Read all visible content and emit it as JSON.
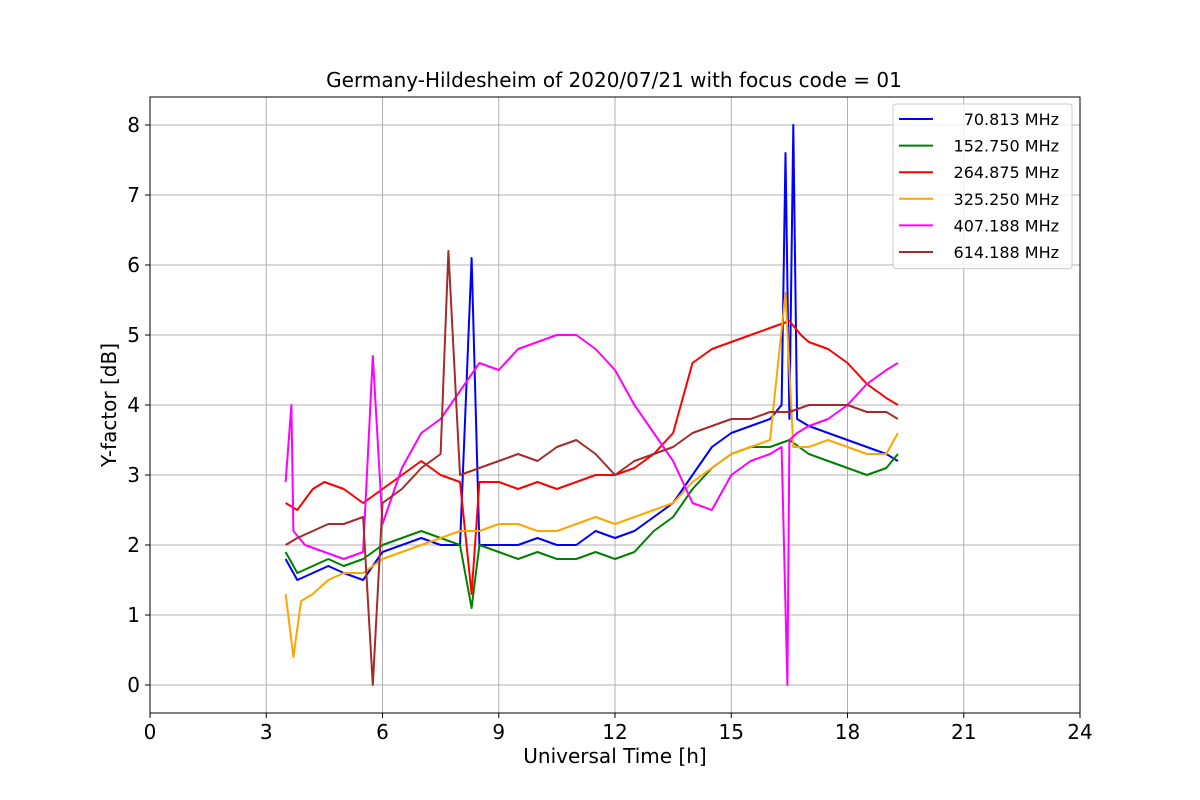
{
  "chart_data": {
    "type": "line",
    "title": "Germany-Hildesheim of 2020/07/21 with focus code = 01",
    "xlabel": "Universal Time [h]",
    "ylabel": "Y-factor [dB]",
    "xlim": [
      0,
      24
    ],
    "ylim": [
      -0.4,
      8.4
    ],
    "xticks": [
      0,
      3,
      6,
      9,
      12,
      15,
      18,
      21,
      24
    ],
    "yticks": [
      0,
      1,
      2,
      3,
      4,
      5,
      6,
      7,
      8
    ],
    "xtick_labels": [
      "0",
      "3",
      "6",
      "9",
      "12",
      "15",
      "18",
      "21",
      "24"
    ],
    "ytick_labels": [
      "0",
      "1",
      "2",
      "3",
      "4",
      "5",
      "6",
      "7",
      "8"
    ],
    "grid": true,
    "legend_position": "top-right",
    "series": [
      {
        "name": "70.813 MHz",
        "color": "#0000ff",
        "x": [
          3.5,
          3.8,
          4.2,
          4.6,
          5.0,
          5.5,
          6.0,
          6.5,
          7.0,
          7.5,
          8.0,
          8.3,
          8.5,
          9.0,
          9.5,
          10.0,
          10.5,
          11.0,
          11.5,
          12.0,
          12.5,
          13.0,
          13.5,
          14.0,
          14.5,
          15.0,
          15.5,
          16.0,
          16.3,
          16.4,
          16.5,
          16.6,
          16.7,
          17.0,
          17.5,
          18.0,
          18.5,
          19.0,
          19.3
        ],
        "y": [
          1.8,
          1.5,
          1.6,
          1.7,
          1.6,
          1.5,
          1.9,
          2.0,
          2.1,
          2.0,
          2.0,
          6.1,
          2.0,
          2.0,
          2.0,
          2.1,
          2.0,
          2.0,
          2.2,
          2.1,
          2.2,
          2.4,
          2.6,
          3.0,
          3.4,
          3.6,
          3.7,
          3.8,
          4.0,
          7.6,
          3.8,
          8.0,
          3.8,
          3.7,
          3.6,
          3.5,
          3.4,
          3.3,
          3.2
        ]
      },
      {
        "name": "152.750 MHz",
        "color": "#008000",
        "x": [
          3.5,
          3.8,
          4.2,
          4.6,
          5.0,
          5.5,
          6.0,
          6.5,
          7.0,
          7.5,
          8.0,
          8.3,
          8.5,
          9.0,
          9.5,
          10.0,
          10.5,
          11.0,
          11.5,
          12.0,
          12.5,
          13.0,
          13.5,
          14.0,
          14.5,
          15.0,
          15.5,
          16.0,
          16.5,
          17.0,
          17.5,
          18.0,
          18.5,
          19.0,
          19.3
        ],
        "y": [
          1.9,
          1.6,
          1.7,
          1.8,
          1.7,
          1.8,
          2.0,
          2.1,
          2.2,
          2.1,
          2.0,
          1.1,
          2.0,
          1.9,
          1.8,
          1.9,
          1.8,
          1.8,
          1.9,
          1.8,
          1.9,
          2.2,
          2.4,
          2.8,
          3.1,
          3.3,
          3.4,
          3.4,
          3.5,
          3.3,
          3.2,
          3.1,
          3.0,
          3.1,
          3.3
        ]
      },
      {
        "name": "264.875 MHz",
        "color": "#ff0000",
        "x": [
          3.5,
          3.8,
          4.2,
          4.5,
          5.0,
          5.5,
          6.0,
          6.5,
          7.0,
          7.5,
          8.0,
          8.3,
          8.5,
          9.0,
          9.5,
          10.0,
          10.5,
          11.0,
          11.5,
          12.0,
          12.5,
          13.0,
          13.5,
          14.0,
          14.5,
          15.0,
          15.5,
          16.0,
          16.5,
          16.8,
          17.0,
          17.5,
          18.0,
          18.5,
          19.0,
          19.3
        ],
        "y": [
          2.6,
          2.5,
          2.8,
          2.9,
          2.8,
          2.6,
          2.8,
          3.0,
          3.2,
          3.0,
          2.9,
          1.3,
          2.9,
          2.9,
          2.8,
          2.9,
          2.8,
          2.9,
          3.0,
          3.0,
          3.1,
          3.3,
          3.6,
          4.6,
          4.8,
          4.9,
          5.0,
          5.1,
          5.2,
          5.0,
          4.9,
          4.8,
          4.6,
          4.3,
          4.1,
          4.0
        ]
      },
      {
        "name": "325.250 MHz",
        "color": "#ffa500",
        "x": [
          3.5,
          3.7,
          3.9,
          4.2,
          4.6,
          5.0,
          5.5,
          6.0,
          6.5,
          7.0,
          7.5,
          8.0,
          8.5,
          9.0,
          9.5,
          10.0,
          10.5,
          11.0,
          11.5,
          12.0,
          12.5,
          13.0,
          13.5,
          14.0,
          14.5,
          15.0,
          15.5,
          16.0,
          16.4,
          16.6,
          17.0,
          17.5,
          18.0,
          18.5,
          19.0,
          19.3
        ],
        "y": [
          1.3,
          0.4,
          1.2,
          1.3,
          1.5,
          1.6,
          1.6,
          1.8,
          1.9,
          2.0,
          2.1,
          2.2,
          2.2,
          2.3,
          2.3,
          2.2,
          2.2,
          2.3,
          2.4,
          2.3,
          2.4,
          2.5,
          2.6,
          2.9,
          3.1,
          3.3,
          3.4,
          3.5,
          5.6,
          3.4,
          3.4,
          3.5,
          3.4,
          3.3,
          3.3,
          3.6
        ]
      },
      {
        "name": "407.188 MHz",
        "color": "#ff00ff",
        "x": [
          3.5,
          3.65,
          3.7,
          4.0,
          4.5,
          5.0,
          5.5,
          5.75,
          6.0,
          6.5,
          7.0,
          7.5,
          8.0,
          8.5,
          9.0,
          9.5,
          10.0,
          10.5,
          11.0,
          11.5,
          12.0,
          12.5,
          13.0,
          13.5,
          14.0,
          14.5,
          15.0,
          15.5,
          16.0,
          16.3,
          16.45,
          16.5,
          16.7,
          17.0,
          17.5,
          18.0,
          18.5,
          19.0,
          19.3
        ],
        "y": [
          2.9,
          4.0,
          2.2,
          2.0,
          1.9,
          1.8,
          1.9,
          4.7,
          2.3,
          3.1,
          3.6,
          3.8,
          4.2,
          4.6,
          4.5,
          4.8,
          4.9,
          5.0,
          5.0,
          4.8,
          4.5,
          4.0,
          3.6,
          3.2,
          2.6,
          2.5,
          3.0,
          3.2,
          3.3,
          3.4,
          0.0,
          3.5,
          3.6,
          3.7,
          3.8,
          4.0,
          4.3,
          4.5,
          4.6
        ]
      },
      {
        "name": "614.188 MHz",
        "color": "#a52a2a",
        "x": [
          3.5,
          3.8,
          4.2,
          4.6,
          5.0,
          5.5,
          5.75,
          6.0,
          6.5,
          7.0,
          7.5,
          7.7,
          8.0,
          8.5,
          9.0,
          9.5,
          10.0,
          10.5,
          11.0,
          11.5,
          12.0,
          12.5,
          13.0,
          13.5,
          14.0,
          14.5,
          15.0,
          15.5,
          16.0,
          16.5,
          17.0,
          17.5,
          18.0,
          18.5,
          19.0,
          19.3
        ],
        "y": [
          2.0,
          2.1,
          2.2,
          2.3,
          2.3,
          2.4,
          0.0,
          2.6,
          2.8,
          3.1,
          3.3,
          6.2,
          3.0,
          3.1,
          3.2,
          3.3,
          3.2,
          3.4,
          3.5,
          3.3,
          3.0,
          3.2,
          3.3,
          3.4,
          3.6,
          3.7,
          3.8,
          3.8,
          3.9,
          3.9,
          4.0,
          4.0,
          4.0,
          3.9,
          3.9,
          3.8
        ]
      }
    ]
  }
}
